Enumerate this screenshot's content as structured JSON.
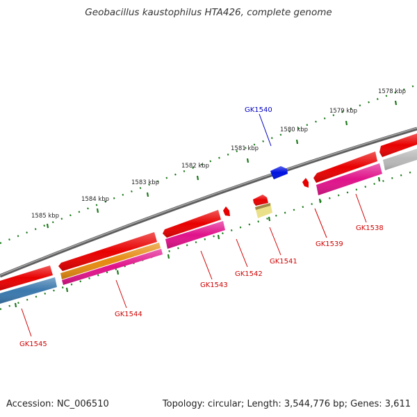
{
  "header": {
    "title": "Geobacillus kaustophilus HTA426, complete genome"
  },
  "footer": {
    "accession": "Accession: NC_006510",
    "summary": "Topology: circular; Length: 3,544,776 bp; Genes: 3,611"
  },
  "colors": {
    "backbone": "#7a7a7a",
    "tick": "#1a7a1a",
    "label_red": "#d00000",
    "label_blue": "#0000c0",
    "red": "#e80000",
    "magenta": "#e0128a",
    "orange": "#e58a10",
    "steelblue": "#3a78ad",
    "gray": "#b8b8b8",
    "khaki": "#ebe08a",
    "blue": "#0010e0"
  },
  "scale_ticks": [
    {
      "label": "1578 kbp"
    },
    {
      "label": "1579 kbp"
    },
    {
      "label": "1580 kbp"
    },
    {
      "label": "1581 kbp"
    },
    {
      "label": "1582 kbp"
    },
    {
      "label": "1583 kbp"
    },
    {
      "label": "1584 kbp"
    },
    {
      "label": "1585 kbp"
    }
  ],
  "genes": [
    {
      "name": "GK1538",
      "color": "red"
    },
    {
      "name": "GK1539",
      "color": "red"
    },
    {
      "name": "GK1540",
      "color": "blue"
    },
    {
      "name": "GK1541",
      "color": "red"
    },
    {
      "name": "GK1542",
      "color": "red"
    },
    {
      "name": "GK1543",
      "color": "red"
    },
    {
      "name": "GK1544",
      "color": "red"
    },
    {
      "name": "GK1545",
      "color": "red"
    }
  ]
}
